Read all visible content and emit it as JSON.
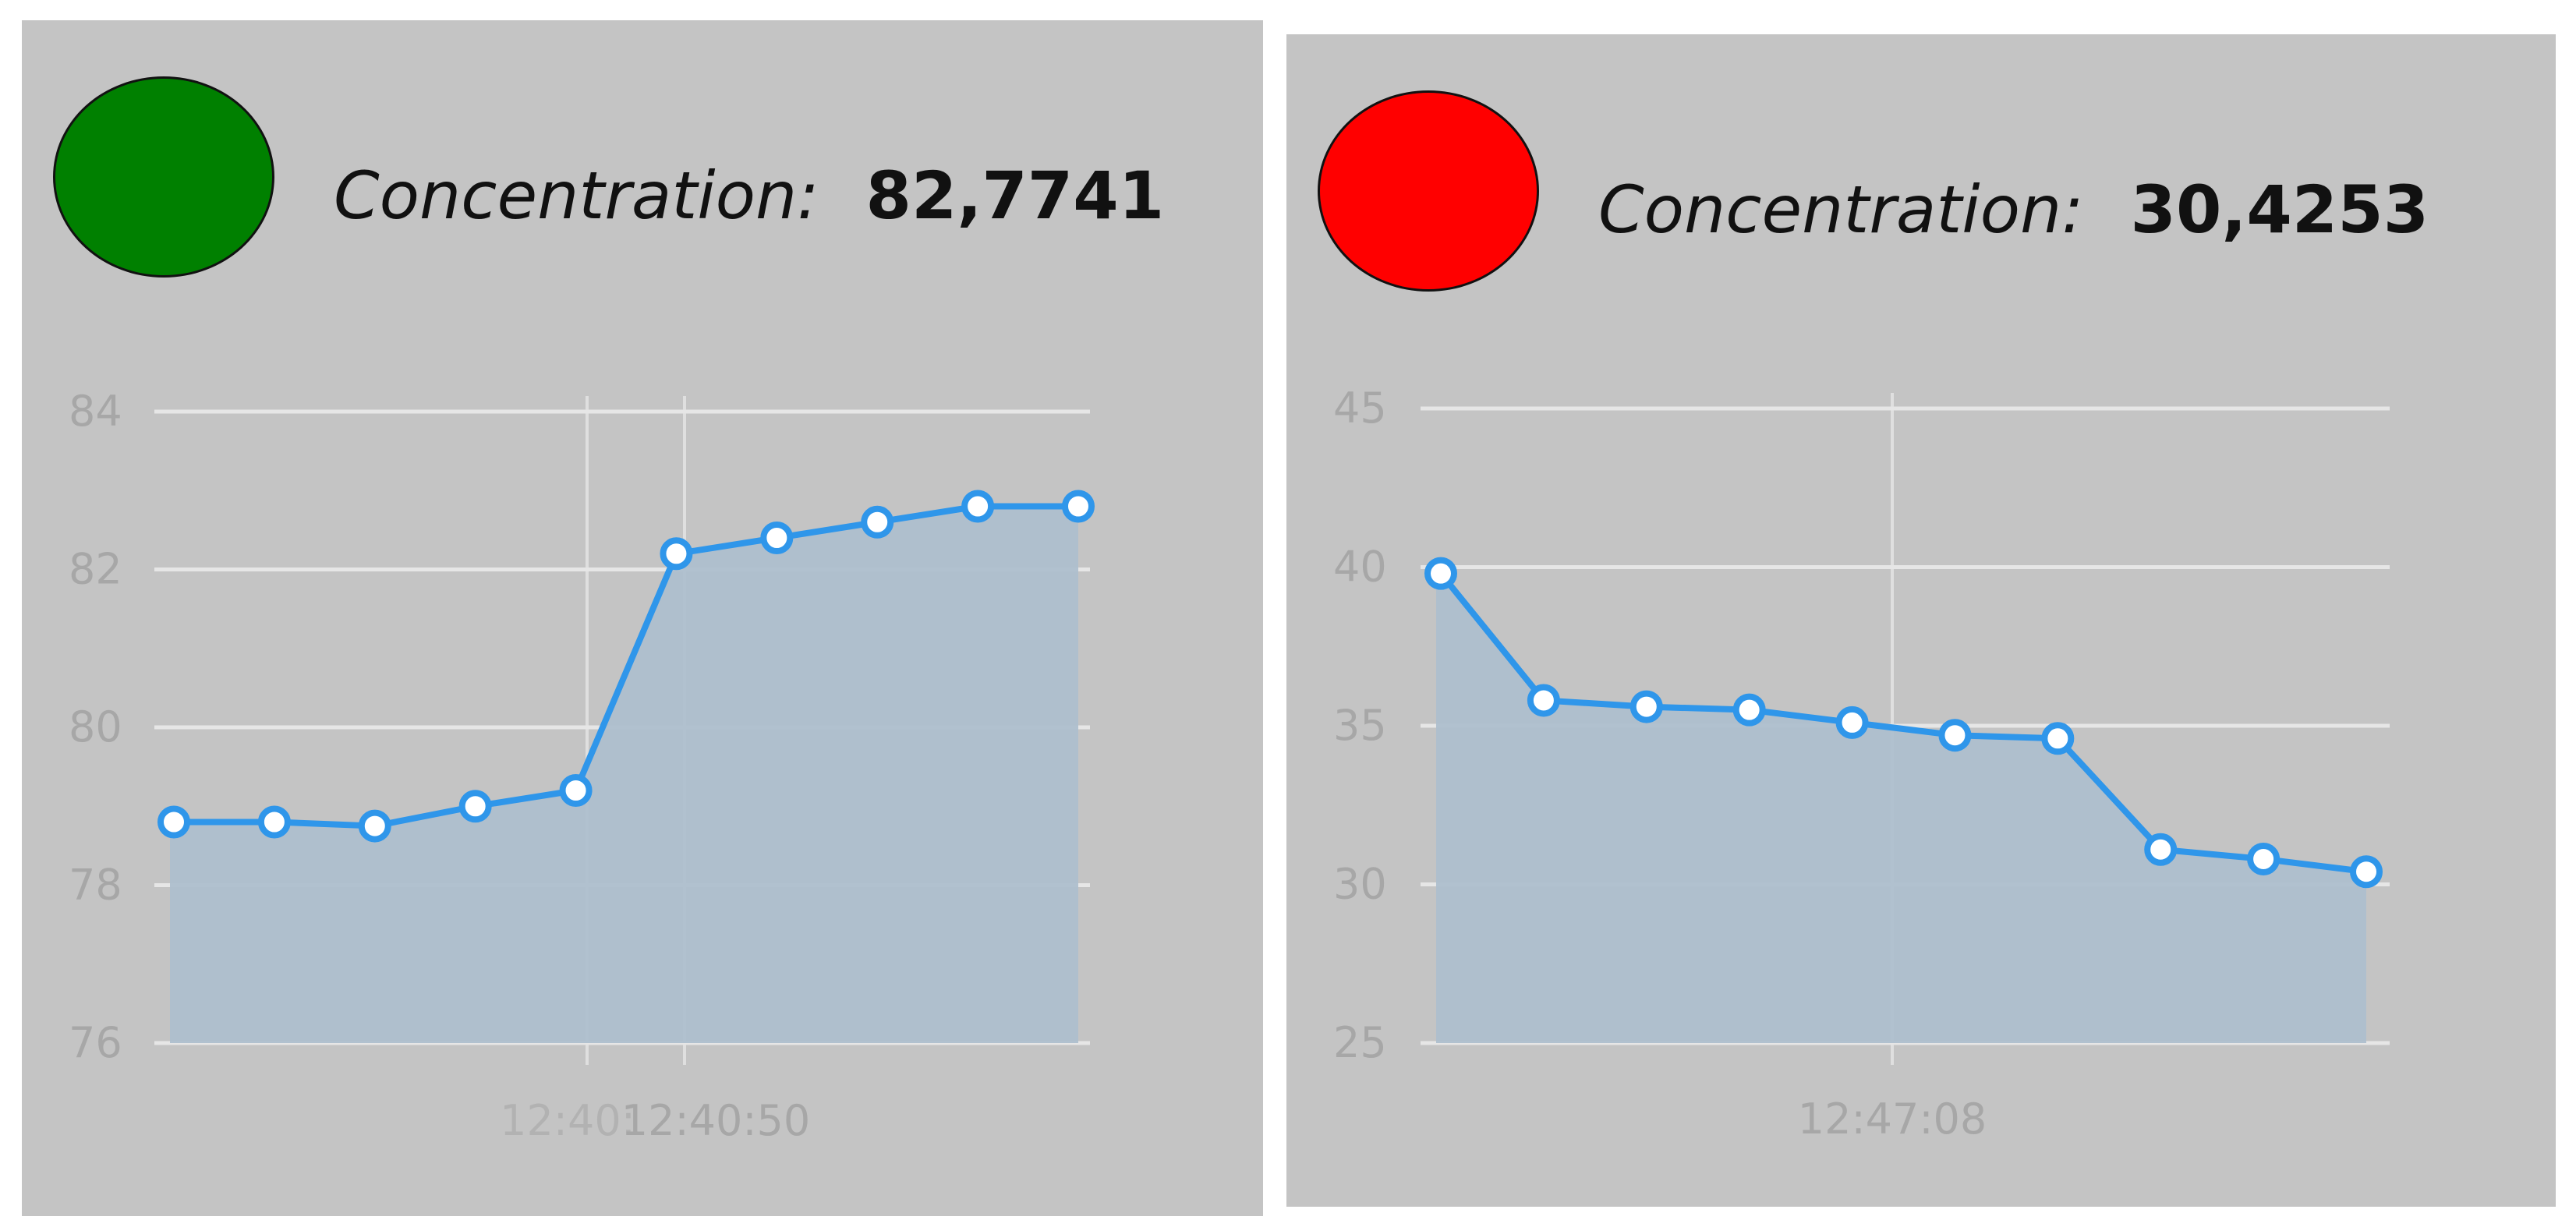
{
  "panels": [
    {
      "status_color": "#008000",
      "concentration_label": "Concentration:",
      "concentration_value": "82,7741"
    },
    {
      "status_color": "#ff0000",
      "concentration_label": "Concentration:",
      "concentration_value": "30,4253"
    }
  ],
  "colors": {
    "line": "#2f96ea",
    "area": "#aebfcd",
    "grid": "#e6e6e6",
    "panel_bg": "#c4c4c4"
  },
  "chart_data": [
    {
      "type": "area",
      "title": "",
      "xlabel": "",
      "ylabel": "",
      "ylim": [
        76,
        84
      ],
      "yticks": [
        76,
        78,
        80,
        82,
        84
      ],
      "x_tick_labels": [
        "12:40:",
        "12:40:50"
      ],
      "grid": true,
      "series": [
        {
          "values": [
            78.8,
            78.8,
            78.75,
            79.0,
            79.2,
            82.2,
            82.4,
            82.6,
            82.8,
            82.8
          ]
        }
      ]
    },
    {
      "type": "area",
      "title": "",
      "xlabel": "",
      "ylabel": "",
      "ylim": [
        25,
        45
      ],
      "yticks": [
        25,
        30,
        35,
        40,
        45
      ],
      "x_tick_labels": [
        "12:47:08"
      ],
      "grid": true,
      "series": [
        {
          "values": [
            39.8,
            35.8,
            35.6,
            35.5,
            35.1,
            34.7,
            34.6,
            31.1,
            30.8,
            30.4
          ]
        }
      ]
    }
  ]
}
